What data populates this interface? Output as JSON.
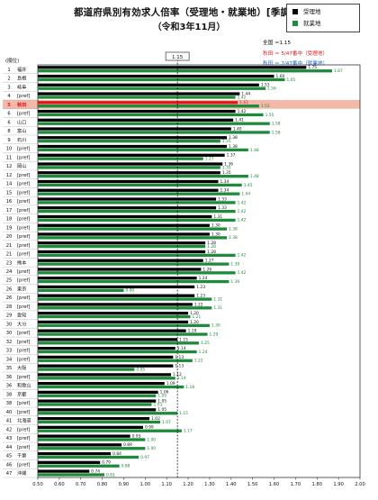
{
  "title": "都道府県別有効求人倍率（受理地・就業地）[季調値]",
  "subtitle": "（令和3年11月）",
  "legend": [
    {
      "label": "受理地",
      "color": "#000000"
    },
    {
      "label": "就業地",
      "color": "#1e8a3c"
    }
  ],
  "notes": [
    {
      "text": "全国 ＝1.15",
      "color": "#000000"
    },
    {
      "text": "秋田 ＝ 5/47番中（受理地）",
      "color": "#e0161e"
    },
    {
      "text": "秋田 ＝ 7/47番中（就業地）",
      "color": "#1b5fd0"
    }
  ],
  "colors": {
    "uketori": "#000000",
    "shugyo": "#1e8a3c",
    "highlight": "#e0161e",
    "highlight_bg": "#f4b8a8",
    "reference": "#000000"
  },
  "chart_data": {
    "type": "bar",
    "orientation": "horizontal",
    "rank_header": "(順位)",
    "reference_label": "1.15",
    "reference_value": 1.15,
    "xlim": [
      0.5,
      2.0
    ],
    "x_ticks": [
      "0.50",
      "0.60",
      "0.70",
      "0.80",
      "0.90",
      "1.00",
      "1.10",
      "1.20",
      "1.30",
      "1.40",
      "1.50",
      "1.60",
      "1.70",
      "1.80",
      "1.90",
      "2.00"
    ],
    "highlight_index": 4,
    "rows": [
      {
        "rank": "1",
        "pref": "福井",
        "a": 1.75,
        "b": 1.87
      },
      {
        "rank": "2",
        "pref": "島根",
        "a": 1.6,
        "b": 1.65
      },
      {
        "rank": "3",
        "pref": "岐阜",
        "a": 1.53,
        "b": 1.56
      },
      {
        "rank": "4",
        "pref": "[pref]",
        "a": 1.44,
        "b": 1.42
      },
      {
        "rank": "5",
        "pref": "秋田",
        "a": 1.43,
        "b": 1.53
      },
      {
        "rank": "6",
        "pref": "[pref]",
        "a": 1.42,
        "b": 1.55
      },
      {
        "rank": "6",
        "pref": "山口",
        "a": 1.41,
        "b": 1.58
      },
      {
        "rank": "8",
        "pref": "富山",
        "a": 1.4,
        "b": 1.58
      },
      {
        "rank": "9",
        "pref": "石川",
        "a": 1.38,
        "b": 1.35
      },
      {
        "rank": "10",
        "pref": "[pref]",
        "a": 1.38,
        "b": 1.48
      },
      {
        "rank": "11",
        "pref": "[pref]",
        "a": 1.37,
        "b": 1.27
      },
      {
        "rank": "12",
        "pref": "岡山",
        "a": 1.36,
        "b": 1.35
      },
      {
        "rank": "12",
        "pref": "[pref]",
        "a": 1.35,
        "b": 1.48
      },
      {
        "rank": "14",
        "pref": "[pref]",
        "a": 1.34,
        "b": 1.45
      },
      {
        "rank": "15",
        "pref": "[pref]",
        "a": 1.34,
        "b": 1.44
      },
      {
        "rank": "16",
        "pref": "[pref]",
        "a": 1.33,
        "b": 1.42
      },
      {
        "rank": "17",
        "pref": "[pref]",
        "a": 1.33,
        "b": 1.42
      },
      {
        "rank": "18",
        "pref": "[pref]",
        "a": 1.31,
        "b": 1.42
      },
      {
        "rank": "19",
        "pref": "[pref]",
        "a": 1.3,
        "b": 1.38
      },
      {
        "rank": "20",
        "pref": "[pref]",
        "a": 1.3,
        "b": 1.38
      },
      {
        "rank": "21",
        "pref": "[pref]",
        "a": 1.28,
        "b": 1.28
      },
      {
        "rank": "21",
        "pref": "[pref]",
        "a": 1.28,
        "b": 1.42
      },
      {
        "rank": "23",
        "pref": "熊本",
        "a": 1.27,
        "b": 1.39
      },
      {
        "rank": "24",
        "pref": "[pref]",
        "a": 1.26,
        "b": 1.42
      },
      {
        "rank": "25",
        "pref": "[pref]",
        "a": 1.24,
        "b": 1.39
      },
      {
        "rank": "26",
        "pref": "東京",
        "a": 1.23,
        "b": 0.9
      },
      {
        "rank": "26",
        "pref": "[pref]",
        "a": 1.23,
        "b": 1.31
      },
      {
        "rank": "28",
        "pref": "[pref]",
        "a": 1.22,
        "b": 1.31
      },
      {
        "rank": "29",
        "pref": "愛知",
        "a": 1.2,
        "b": 1.21
      },
      {
        "rank": "30",
        "pref": "大分",
        "a": 1.2,
        "b": 1.3
      },
      {
        "rank": "30",
        "pref": "[pref]",
        "a": 1.19,
        "b": 1.29
      },
      {
        "rank": "32",
        "pref": "[pref]",
        "a": 1.15,
        "b": 1.25
      },
      {
        "rank": "33",
        "pref": "[pref]",
        "a": 1.14,
        "b": 1.24
      },
      {
        "rank": "34",
        "pref": "[pref]",
        "a": 1.13,
        "b": 1.22
      },
      {
        "rank": "35",
        "pref": "大阪",
        "a": 1.13,
        "b": 0.95
      },
      {
        "rank": "36",
        "pref": "[pref]",
        "a": 1.12,
        "b": 1.14
      },
      {
        "rank": "36",
        "pref": "和歌山",
        "a": 1.09,
        "b": 1.18
      },
      {
        "rank": "38",
        "pref": "京都",
        "a": 1.06,
        "b": 1.05
      },
      {
        "rank": "38",
        "pref": "[pref]",
        "a": 1.05,
        "b": 1.03
      },
      {
        "rank": "40",
        "pref": "[pref]",
        "a": 1.05,
        "b": 1.15
      },
      {
        "rank": "41",
        "pref": "北海道",
        "a": 1.02,
        "b": 1.07
      },
      {
        "rank": "42",
        "pref": "[pref]",
        "a": 0.99,
        "b": 1.17
      },
      {
        "rank": "43",
        "pref": "[pref]",
        "a": 0.93,
        "b": 1.0
      },
      {
        "rank": "44",
        "pref": "[pref]",
        "a": 0.89,
        "b": 1.0
      },
      {
        "rank": "45",
        "pref": "千葉",
        "a": 0.84,
        "b": 0.97
      },
      {
        "rank": "46",
        "pref": "[pref]",
        "a": 0.79,
        "b": 0.88
      },
      {
        "rank": "47",
        "pref": "沖縄",
        "a": 0.74,
        "b": 0.81
      }
    ]
  }
}
